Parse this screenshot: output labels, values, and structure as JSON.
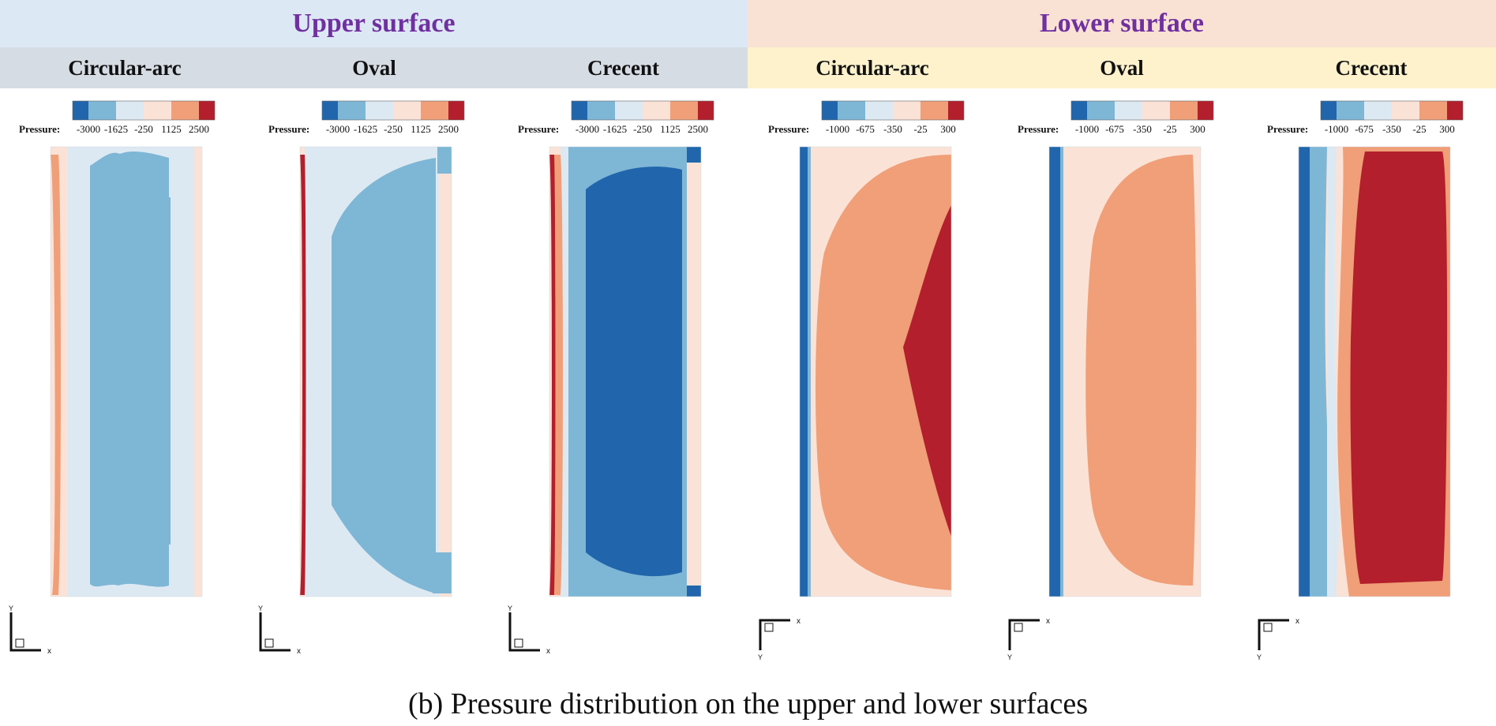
{
  "groups": [
    {
      "title": "Upper surface",
      "bg": "#dde8f5"
    },
    {
      "title": "Lower surface",
      "bg": "#f9e2d4"
    }
  ],
  "title_color": "#7030a0",
  "subheader_colors": {
    "upper": "#d6dce4",
    "lower": "#fdf2cc"
  },
  "panels": [
    {
      "label": "Circular-arc",
      "surface": "upper",
      "legend_key": "upper",
      "kind": "up-circ"
    },
    {
      "label": "Oval",
      "surface": "upper",
      "legend_key": "upper",
      "kind": "up-oval"
    },
    {
      "label": "Crecent",
      "surface": "upper",
      "legend_key": "upper",
      "kind": "up-cres"
    },
    {
      "label": "Circular-arc",
      "surface": "lower",
      "legend_key": "lower",
      "kind": "lo-circ"
    },
    {
      "label": "Oval",
      "surface": "lower",
      "legend_key": "lower",
      "kind": "lo-oval"
    },
    {
      "label": "Crecent",
      "surface": "lower",
      "legend_key": "lower",
      "kind": "lo-cres"
    }
  ],
  "legends": {
    "upper": {
      "title": "Pressure:",
      "ticks": [
        "-3000",
        "-1625",
        "-250",
        "1125",
        "2500"
      ]
    },
    "lower": {
      "title": "Pressure:",
      "ticks": [
        "-1000",
        "-675",
        "-350",
        "-25",
        "300"
      ]
    }
  },
  "colormap": [
    "#2166ac",
    "#7eb6d6",
    "#dde9f2",
    "#fbe2d6",
    "#f09f78",
    "#b31f2c"
  ],
  "axes_labels": {
    "x": "x",
    "y": "Y"
  },
  "caption": "(b) Pressure distribution on the upper and lower surfaces"
}
